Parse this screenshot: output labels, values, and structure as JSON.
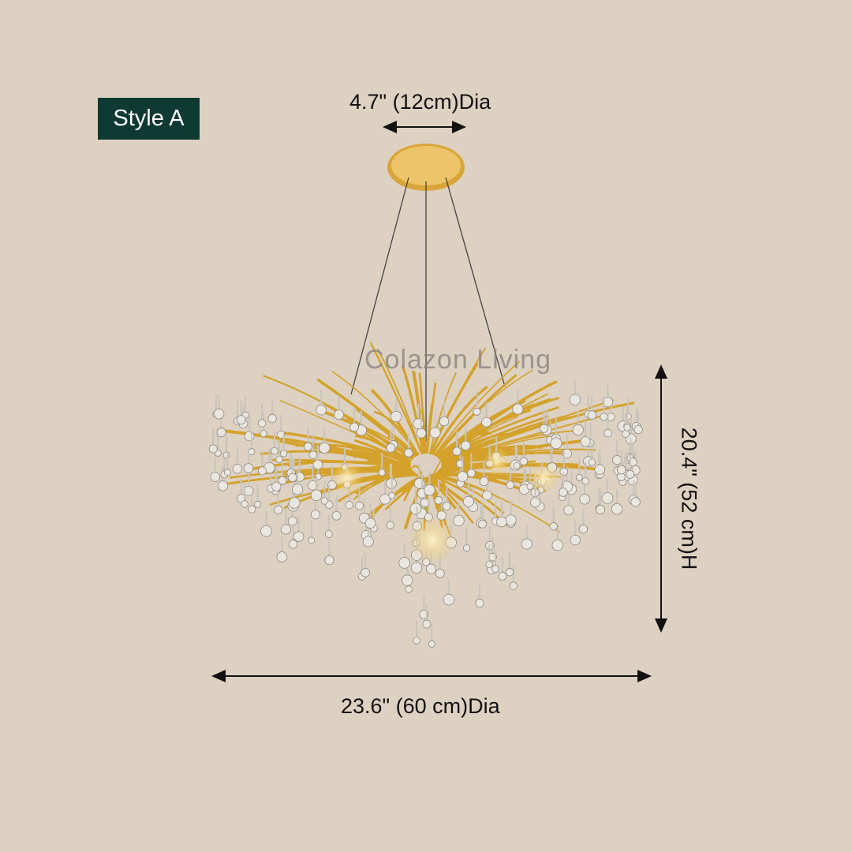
{
  "badge": {
    "label": "Style A",
    "background": "#0f3a34"
  },
  "dimensions": {
    "canopy": "4.7\" (12cm)Dia",
    "width": "23.6\" (60 cm)Dia",
    "height": "20.4\" (52 cm)H"
  },
  "watermark": "Colazon Living",
  "colors": {
    "background": "#ddd1c2",
    "gold": "#d4a22a",
    "crystal": "#e9e6e0"
  }
}
